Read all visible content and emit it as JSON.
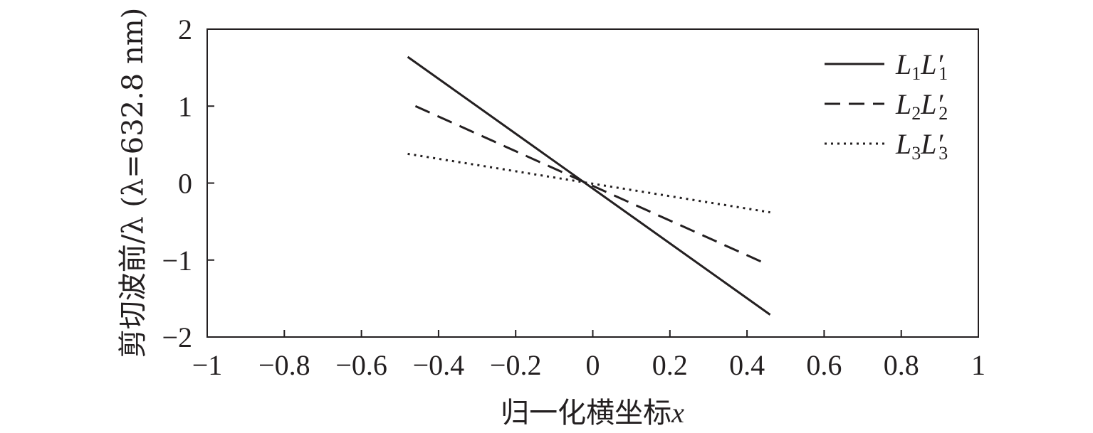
{
  "chart_data": {
    "type": "line",
    "xlabel_text": "归一化横坐标",
    "xlabel_var": "x",
    "ylabel": "剪切波前/λ (λ=632.8 nm)",
    "xlim": [
      -1,
      1
    ],
    "ylim": [
      -2,
      2
    ],
    "xticks": [
      -1,
      -0.8,
      -0.6,
      -0.4,
      -0.2,
      0,
      0.2,
      0.4,
      0.6,
      0.8,
      1
    ],
    "yticks": [
      2,
      1,
      0,
      -1,
      -2
    ],
    "xtick_labels": [
      "−1",
      "−0.8",
      "−0.6",
      "−0.4",
      "−0.2",
      "0",
      "0.2",
      "0.4",
      "0.6",
      "0.8",
      "1"
    ],
    "ytick_labels": [
      "2",
      "1",
      "0",
      "−1",
      "−2"
    ],
    "legend_position": "top-right",
    "series": [
      {
        "name": "L1L′1",
        "legend_main": "L",
        "legend_sub1": "1",
        "legend_main2": "L′",
        "legend_sub2": "1",
        "style": "solid",
        "x": [
          -0.48,
          0.46
        ],
        "y": [
          1.64,
          -1.71
        ]
      },
      {
        "name": "L2L′2",
        "legend_main": "L",
        "legend_sub1": "2",
        "legend_main2": "L′",
        "legend_sub2": "2",
        "style": "dashed",
        "x": [
          -0.46,
          0.45
        ],
        "y": [
          1.0,
          -1.05
        ]
      },
      {
        "name": "L3L′3",
        "legend_main": "L",
        "legend_sub1": "3",
        "legend_main2": "L′",
        "legend_sub2": "3",
        "style": "dotted",
        "x": [
          -0.48,
          0.46
        ],
        "y": [
          0.38,
          -0.38
        ]
      }
    ],
    "colors": {
      "line": "#231f20",
      "background": "#ffffff"
    }
  }
}
